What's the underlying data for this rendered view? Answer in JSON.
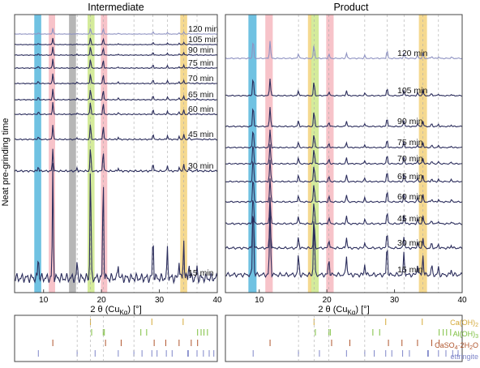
{
  "figure": {
    "y_axis_label": "Neat pre-grinding time",
    "x_axis_label": "2 θ (Cu",
    "x_axis_sub": "Kα",
    "x_axis_unit": ") [°]"
  },
  "chart_data": [
    {
      "type": "line",
      "title": "Intermediate",
      "xlim": [
        5,
        40
      ],
      "xticks": [
        10,
        20,
        30,
        40
      ],
      "x_tick_labels": [
        "10",
        "20",
        "30",
        "40"
      ],
      "series_offset": "stacked, increasing time upward",
      "series": [
        {
          "name": "15 min",
          "style": "dark"
        },
        {
          "name": "30 min",
          "style": "dark"
        },
        {
          "name": "45 min",
          "style": "dark"
        },
        {
          "name": "60 min",
          "style": "dark"
        },
        {
          "name": "65 min",
          "style": "dark"
        },
        {
          "name": "70 min",
          "style": "dark"
        },
        {
          "name": "75 min",
          "style": "dark"
        },
        {
          "name": "90 min",
          "style": "dark"
        },
        {
          "name": "105 min",
          "style": "dark"
        },
        {
          "name": "120 min",
          "style": "light"
        }
      ],
      "peaks": [
        {
          "x": 9.1,
          "h": 0.12
        },
        {
          "x": 11.6,
          "h": 0.58
        },
        {
          "x": 15.8,
          "h": 0.08
        },
        {
          "x": 18.1,
          "h": 0.62
        },
        {
          "x": 20.3,
          "h": 0.55
        },
        {
          "x": 22.9,
          "h": 0.08
        },
        {
          "x": 28.9,
          "h": 0.22
        },
        {
          "x": 31.4,
          "h": 0.16
        },
        {
          "x": 33.4,
          "h": 0.1
        },
        {
          "x": 34.2,
          "h": 0.2
        },
        {
          "x": 35.1,
          "h": 0.08
        },
        {
          "x": 36.5,
          "h": 0.05
        }
      ],
      "highlight_bands": [
        {
          "x": [
            8.4,
            9.6
          ],
          "color": "#57b7dd"
        },
        {
          "x": [
            10.9,
            12.0
          ],
          "color": "#f6b8bf"
        },
        {
          "x": [
            14.4,
            15.6
          ],
          "color": "#a9a9a9"
        },
        {
          "x": [
            17.6,
            18.8
          ],
          "color": "#cde88a"
        },
        {
          "x": [
            19.9,
            21.0
          ],
          "color": "#f6b8bf"
        },
        {
          "x": [
            33.6,
            34.8
          ],
          "color": "#f3d27c"
        }
      ]
    },
    {
      "type": "line",
      "title": "Product",
      "xlim": [
        5,
        40
      ],
      "xticks": [
        10,
        20,
        30,
        40
      ],
      "x_tick_labels": [
        "10",
        "20",
        "30",
        "40"
      ],
      "series_offset": "stacked, increasing time upward",
      "series": [
        {
          "name": "15 min",
          "style": "dark"
        },
        {
          "name": "30 min",
          "style": "dark"
        },
        {
          "name": "45 min",
          "style": "dark"
        },
        {
          "name": "60 min",
          "style": "dark"
        },
        {
          "name": "65 min",
          "style": "dark"
        },
        {
          "name": "70 min",
          "style": "dark"
        },
        {
          "name": "75 min",
          "style": "dark"
        },
        {
          "name": "90 min",
          "style": "dark"
        },
        {
          "name": "105 min",
          "style": "dark"
        },
        {
          "name": "120 min",
          "style": "light"
        }
      ],
      "peaks": [
        {
          "x": 9.1,
          "h": 0.85
        },
        {
          "x": 11.6,
          "h": 0.75
        },
        {
          "x": 15.8,
          "h": 0.22
        },
        {
          "x": 18.1,
          "h": 0.6
        },
        {
          "x": 20.3,
          "h": 0.18
        },
        {
          "x": 22.9,
          "h": 0.22
        },
        {
          "x": 25.6,
          "h": 0.12
        },
        {
          "x": 28.9,
          "h": 0.35
        },
        {
          "x": 31.4,
          "h": 0.25
        },
        {
          "x": 33.4,
          "h": 0.12
        },
        {
          "x": 34.2,
          "h": 0.22
        },
        {
          "x": 35.5,
          "h": 0.1
        },
        {
          "x": 36.5,
          "h": 0.08
        },
        {
          "x": 38.4,
          "h": 0.06
        }
      ],
      "highlight_bands": [
        {
          "x": [
            8.4,
            9.6
          ],
          "color": "#57b7dd"
        },
        {
          "x": [
            10.9,
            12.0
          ],
          "color": "#f6b8bf"
        },
        {
          "x": [
            17.6,
            18.8
          ],
          "color": "#cde88a"
        },
        {
          "x": [
            17.2,
            17.7
          ],
          "color": "#f3d27c"
        },
        {
          "x": [
            19.9,
            21.0
          ],
          "color": "#f6b8bf"
        },
        {
          "x": [
            33.6,
            34.8
          ],
          "color": "#f3d27c"
        }
      ]
    }
  ],
  "reference_legend": [
    {
      "label": "Ca(OH)",
      "sub": "2",
      "label_rest": "",
      "color": "#d4a937"
    },
    {
      "label": "Al(OH)",
      "sub": "3",
      "label_rest": "",
      "color": "#7cbf3d"
    },
    {
      "label": "CaSO",
      "sub": "4",
      "label_rest": "·2H",
      "sub2": "2",
      "label_end": "O",
      "color": "#b0552c"
    },
    {
      "label": "ettringite",
      "sub": "",
      "label_rest": "",
      "color": "#7f86c9"
    }
  ],
  "reference_ticks": {
    "Ca(OH)2": [
      18.1,
      28.7,
      34.1,
      47.1
    ],
    "Al(OH)3": [
      18.3,
      20.3,
      20.5,
      26.8,
      27.8,
      36.6,
      37.2,
      37.7,
      38.3
    ],
    "CaSO4·2H2O": [
      11.6,
      20.7,
      23.4,
      29.1,
      31.1,
      33.4,
      35.5,
      36.6
    ],
    "ettringite": [
      9.1,
      15.8,
      18.9,
      22.9,
      25.6,
      27.0,
      28.7,
      29.6,
      31.2,
      32.2,
      34.9,
      35.0,
      36.5,
      37.6,
      38.6,
      39.4
    ]
  },
  "colors": {
    "dark_trace": "#2b2d5c",
    "light_trace": "#8f93c2",
    "frame": "#444444",
    "dashed": "#aaaaaa"
  }
}
